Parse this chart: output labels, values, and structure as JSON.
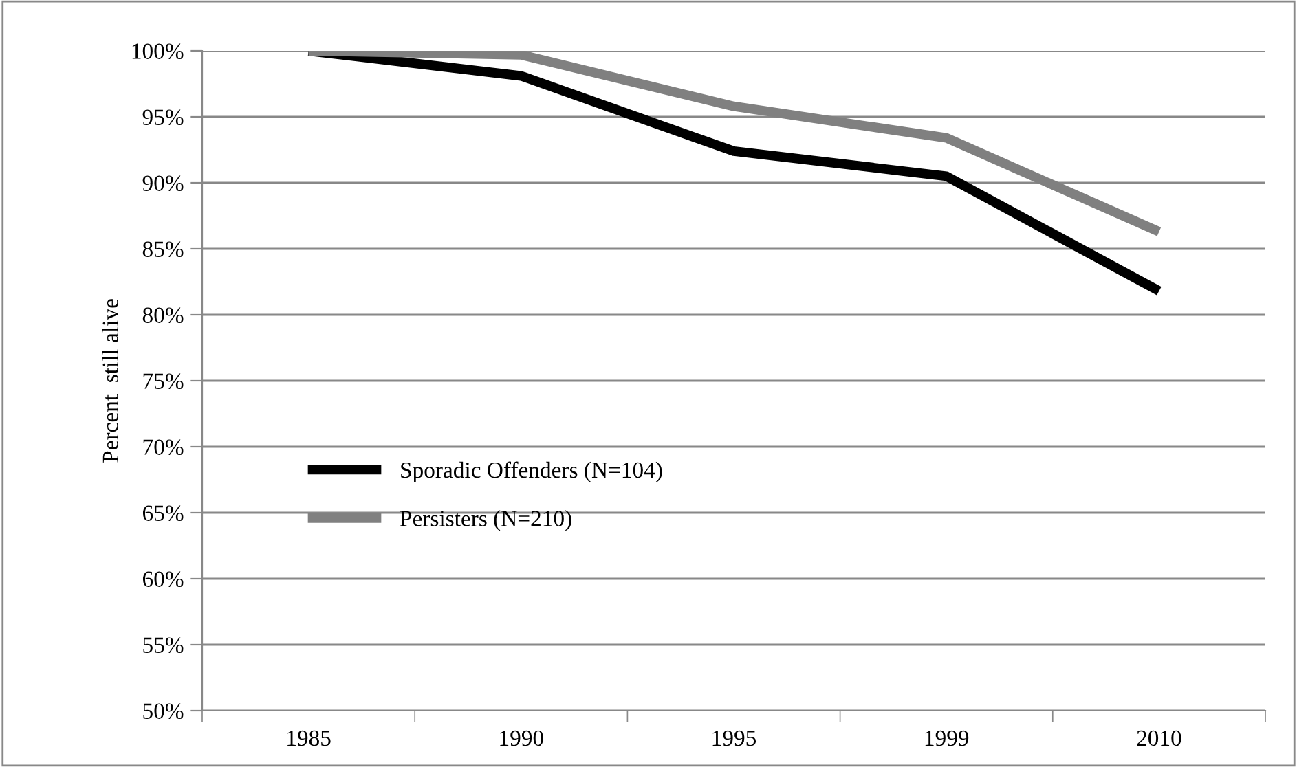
{
  "chart_data": {
    "type": "line",
    "ylabel": "Percent  still alive",
    "categories": [
      "1985",
      "1990",
      "1995",
      "1999",
      "2010"
    ],
    "series": [
      {
        "name": "Sporadic Offenders (N=104)",
        "color": "#000000",
        "values": [
          100,
          98.1,
          92.4,
          90.5,
          81.8
        ]
      },
      {
        "name": "Persisters (N=210)",
        "color": "#808080",
        "values": [
          100,
          99.7,
          95.8,
          93.4,
          86.3
        ]
      }
    ],
    "ylim": [
      50,
      100
    ],
    "yticks": [
      {
        "value": 50,
        "label": "50%"
      },
      {
        "value": 55,
        "label": "55%"
      },
      {
        "value": 60,
        "label": "60%"
      },
      {
        "value": 65,
        "label": "65%"
      },
      {
        "value": 70,
        "label": "70%"
      },
      {
        "value": 75,
        "label": "75%"
      },
      {
        "value": 80,
        "label": "80%"
      },
      {
        "value": 85,
        "label": "85%"
      },
      {
        "value": 90,
        "label": "90%"
      },
      {
        "value": 95,
        "label": "95%"
      },
      {
        "value": 100,
        "label": "100%"
      }
    ],
    "grid": "y",
    "legend": "left",
    "marker": "none",
    "line_style": "solid"
  }
}
